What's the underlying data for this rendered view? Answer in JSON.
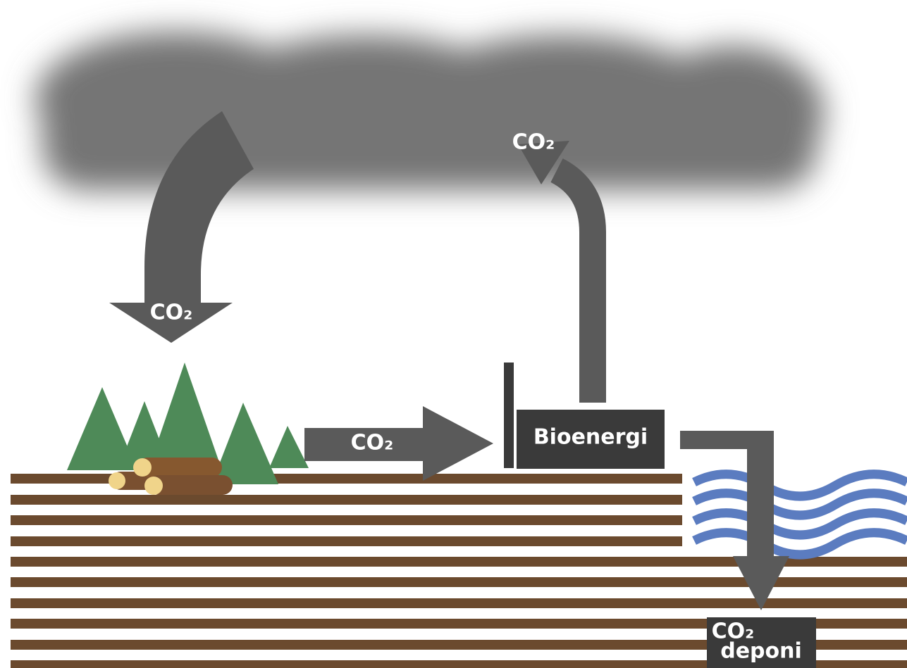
{
  "flows": [
    "CO₂",
    "CO₂",
    "CO₂"
  ],
  "plant": {
    "label": "Bioenergi"
  },
  "storage": {
    "lines": [
      "CO₂",
      "deponi"
    ]
  }
}
